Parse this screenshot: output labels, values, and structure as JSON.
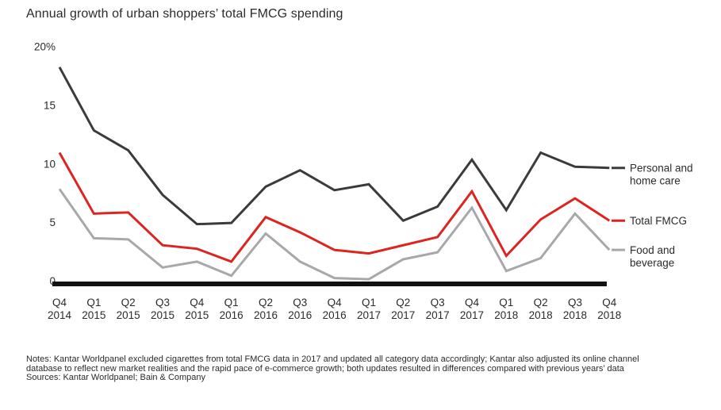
{
  "title": "Annual growth of urban shoppers’ total FMCG spending",
  "notes": {
    "line1": "Notes: Kantar Worldpanel excluded cigarettes from total FMCG data in 2017 and updated all category data accordingly; Kantar also adjusted its online channel",
    "line2": "database to reflect new market realities and the rapid pace of e-commerce growth; both updates resulted in differences compared with previous years’ data",
    "sources": "Sources: Kantar Worldpanel; Bain & Company"
  },
  "colors": {
    "personal_home_care": "#3b3b3d",
    "total_fmcg": "#dd2420",
    "food_beverage": "#a6a8ab",
    "axis_line": "#111111",
    "text": "#2b2b2b"
  },
  "chart_data": {
    "type": "line",
    "title": "Annual growth of urban shoppers’ total FMCG spending",
    "categories": [
      "Q4 2014",
      "Q1 2015",
      "Q2 2015",
      "Q3 2015",
      "Q4 2015",
      "Q1 2016",
      "Q2 2016",
      "Q3 2016",
      "Q4 2016",
      "Q1 2017",
      "Q2 2017",
      "Q3 2017",
      "Q4 2017",
      "Q1 2018",
      "Q2 2018",
      "Q3 2018",
      "Q4 2018"
    ],
    "series": [
      {
        "name": "Personal and home care",
        "legend_lines": [
          "Personal and",
          "home care"
        ],
        "color": "#3b3b3d",
        "values": [
          18.5,
          13.1,
          11.4,
          7.6,
          5.1,
          5.2,
          8.3,
          9.7,
          8.0,
          8.5,
          5.4,
          6.6,
          10.6,
          6.3,
          11.2,
          10.0,
          9.9
        ]
      },
      {
        "name": "Total FMCG",
        "legend_lines": [
          "Total FMCG"
        ],
        "color": "#dd2420",
        "values": [
          11.2,
          6.0,
          6.1,
          3.3,
          3.0,
          1.9,
          5.7,
          4.4,
          2.9,
          2.6,
          3.3,
          4.0,
          7.9,
          2.4,
          5.5,
          7.3,
          5.4
        ]
      },
      {
        "name": "Food and beverage",
        "legend_lines": [
          "Food and",
          "beverage"
        ],
        "color": "#a6a8ab",
        "values": [
          8.1,
          3.9,
          3.8,
          1.4,
          1.9,
          0.7,
          4.3,
          1.9,
          0.5,
          0.4,
          2.1,
          2.7,
          6.5,
          1.1,
          2.2,
          6.0,
          2.9
        ]
      }
    ],
    "xlabel": "",
    "ylabel": "",
    "ylim": [
      0,
      20
    ],
    "yticks": [
      0,
      5,
      10,
      15,
      20
    ],
    "ytick_labels": [
      "0",
      "5",
      "10",
      "15",
      "20%"
    ],
    "grid": false,
    "legend_position": "right"
  }
}
